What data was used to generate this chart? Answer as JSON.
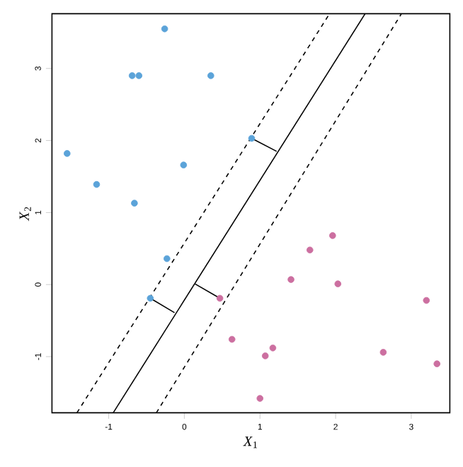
{
  "chart_data": {
    "type": "scatter",
    "xlabel": "*X*$_{1}$",
    "ylabel": "*X*$_{2}$",
    "xlim": [
      -1.75,
      3.51
    ],
    "ylim": [
      -1.78,
      3.76
    ],
    "xticks": [
      -1,
      0,
      1,
      2,
      3
    ],
    "yticks": [
      -1,
      0,
      1,
      2,
      3
    ],
    "grid": false,
    "series": [
      {
        "color": "#5ba3d9",
        "marker": "circle",
        "x": [
          -0.26,
          -0.69,
          -0.6,
          0.35,
          -1.55,
          -1.16,
          -0.01,
          -0.66,
          0.89,
          -0.23,
          -0.45
        ],
        "values": [
          3.55,
          2.9,
          2.9,
          2.9,
          1.82,
          1.39,
          1.66,
          1.13,
          2.03,
          0.36,
          -0.19
        ]
      },
      {
        "color": "#cc6fa0",
        "marker": "circle",
        "x": [
          0.47,
          0.63,
          1.96,
          1.66,
          1.41,
          2.03,
          3.2,
          1.17,
          1.07,
          2.63,
          3.34,
          1.0
        ],
        "values": [
          -0.19,
          -0.76,
          0.68,
          0.48,
          0.07,
          0.01,
          -0.22,
          -0.88,
          -0.99,
          -0.94,
          -1.1,
          -1.58
        ]
      },
      {
        "type": "line",
        "color": "#000000",
        "line_style": "solid",
        "marker": "none",
        "x": [
          -0.94,
          2.39
        ],
        "values": [
          -1.78,
          3.76
        ]
      },
      {
        "type": "line",
        "color": "#000000",
        "line_style": "dashed",
        "marker": "none",
        "x": [
          -1.42,
          1.92
        ],
        "values": [
          -1.78,
          3.76
        ]
      },
      {
        "type": "line",
        "color": "#000000",
        "line_style": "dashed",
        "marker": "none",
        "x": [
          -0.37,
          2.87
        ],
        "values": [
          -1.78,
          3.76
        ]
      },
      {
        "type": "line",
        "color": "#000000",
        "line_style": "solid",
        "marker": "none",
        "x": [
          0.89,
          1.22
        ],
        "values": [
          2.03,
          1.85
        ]
      },
      {
        "type": "line",
        "color": "#000000",
        "line_style": "solid",
        "marker": "none",
        "x": [
          -0.45,
          -0.13
        ],
        "values": [
          -0.19,
          -0.39
        ]
      },
      {
        "type": "line",
        "color": "#000000",
        "line_style": "solid",
        "marker": "none",
        "x": [
          0.47,
          0.14
        ],
        "values": [
          -0.19,
          0.01
        ]
      }
    ]
  }
}
